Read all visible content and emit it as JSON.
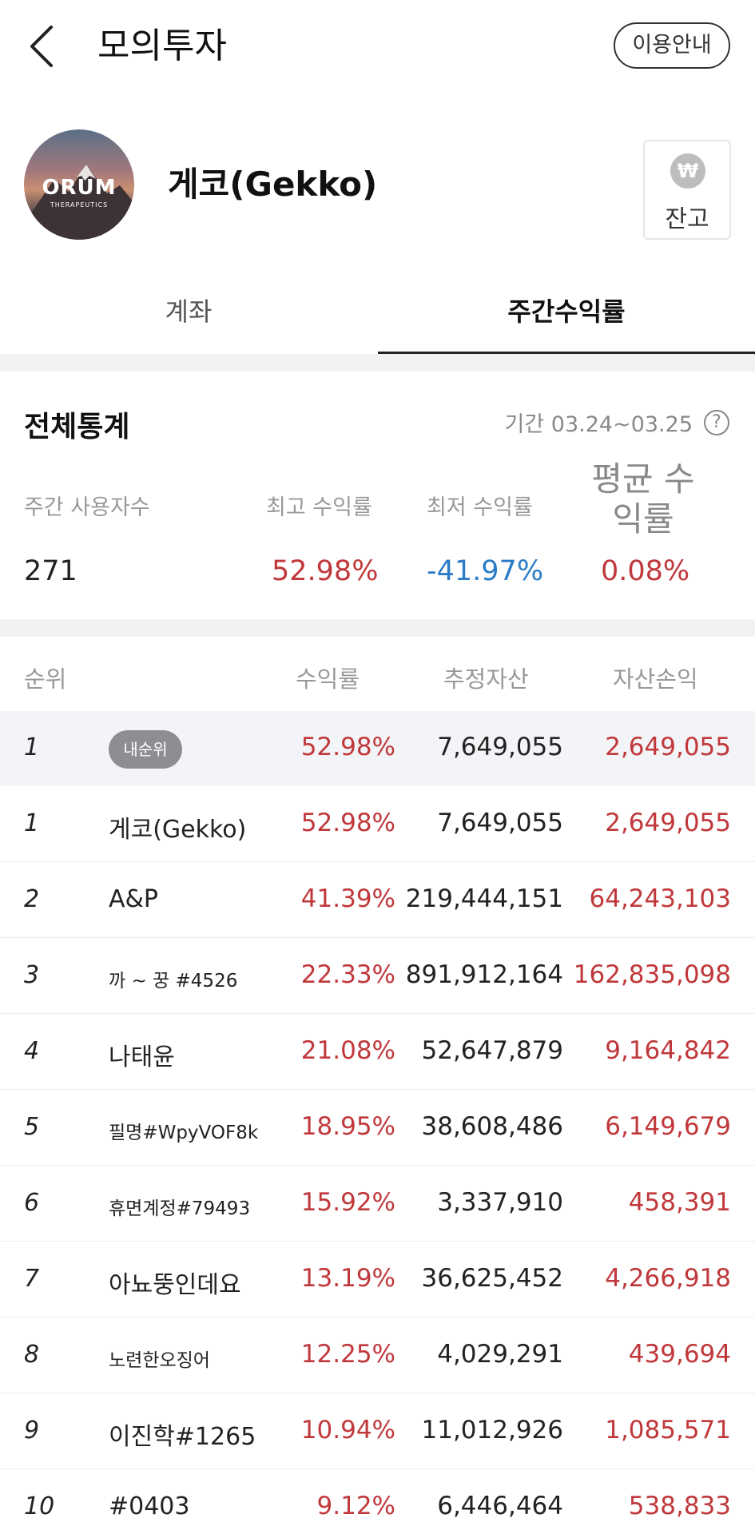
{
  "header": {
    "title": "모의투자",
    "guide_label": "이용안내"
  },
  "profile": {
    "avatar_logo": "ORUM",
    "avatar_logo_sub": "THERAPEUTICS",
    "username": "게코(Gekko)",
    "balance_icon": "₩",
    "balance_label": "잔고"
  },
  "tabs": [
    {
      "label": "계좌",
      "active": false
    },
    {
      "label": "주간수익률",
      "active": true
    }
  ],
  "stats": {
    "title": "전체통계",
    "period": "기간 03.24~03.25",
    "users_label": "주간 사용자수",
    "users_value": "271",
    "max_label": "최고 수익률",
    "max_value": "52.98%",
    "min_label": "최저 수익률",
    "min_value": "-41.97%",
    "avg_label": "평균 수익률",
    "avg_value": "0.08%"
  },
  "table": {
    "columns": [
      "순위",
      "수익률",
      "추정자산",
      "자산손익"
    ],
    "my_rank": {
      "rank": "1",
      "badge": "내순위",
      "rate": "52.98%",
      "asset": "7,649,055",
      "pl": "2,649,055"
    },
    "rows": [
      {
        "rank": "1",
        "name": "게코(Gekko)",
        "rate": "52.98%",
        "asset": "7,649,055",
        "pl": "2,649,055"
      },
      {
        "rank": "2",
        "name": "A&P",
        "rate": "41.39%",
        "asset": "219,444,151",
        "pl": "64,243,103"
      },
      {
        "rank": "3",
        "name": "까 ~ 꿍 #4526",
        "rate": "22.33%",
        "asset": "891,912,164",
        "pl": "162,835,098"
      },
      {
        "rank": "4",
        "name": "나태윤",
        "rate": "21.08%",
        "asset": "52,647,879",
        "pl": "9,164,842"
      },
      {
        "rank": "5",
        "name": "필명#WpyVOF8k",
        "rate": "18.95%",
        "asset": "38,608,486",
        "pl": "6,149,679"
      },
      {
        "rank": "6",
        "name": "휴면계정#79493",
        "rate": "15.92%",
        "asset": "3,337,910",
        "pl": "458,391"
      },
      {
        "rank": "7",
        "name": "아뇨뚱인데요",
        "rate": "13.19%",
        "asset": "36,625,452",
        "pl": "4,266,918"
      },
      {
        "rank": "8",
        "name": "노련한오징어",
        "rate": "12.25%",
        "asset": "4,029,291",
        "pl": "439,694"
      },
      {
        "rank": "9",
        "name": "이진학#1265",
        "rate": "10.94%",
        "asset": "11,012,926",
        "pl": "1,085,571"
      },
      {
        "rank": "10",
        "name": "#0403",
        "rate": "9.12%",
        "asset": "6,446,464",
        "pl": "538,833"
      }
    ]
  },
  "colors": {
    "positive": "#c0383b",
    "negative": "#2a7cc7"
  }
}
